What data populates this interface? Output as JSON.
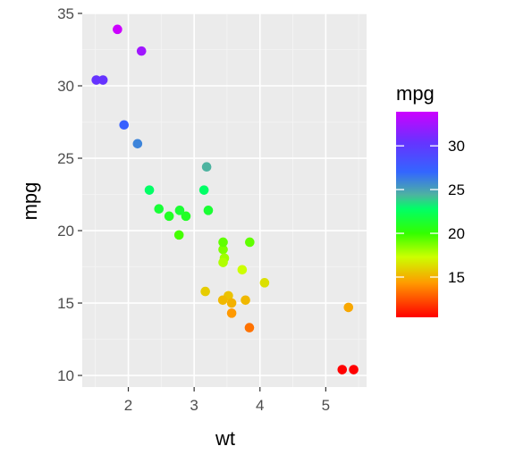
{
  "chart_data": {
    "type": "scatter",
    "xlabel": "wt",
    "ylabel": "mpg",
    "xlim": [
      1.3,
      5.62
    ],
    "ylim": [
      9.2,
      35.0
    ],
    "x_ticks": [
      2,
      3,
      4,
      5
    ],
    "x_tick_labels": [
      "2",
      "3",
      "4",
      "5"
    ],
    "y_ticks": [
      10,
      15,
      20,
      25,
      30,
      35
    ],
    "y_tick_labels": [
      "10",
      "15",
      "20",
      "25",
      "30",
      "35"
    ],
    "grid": true,
    "background": "#ebebeb",
    "points": [
      {
        "x": 2.62,
        "y": 21.0
      },
      {
        "x": 2.875,
        "y": 21.0
      },
      {
        "x": 2.32,
        "y": 22.8
      },
      {
        "x": 3.215,
        "y": 21.4
      },
      {
        "x": 3.44,
        "y": 18.7
      },
      {
        "x": 3.46,
        "y": 18.1
      },
      {
        "x": 3.57,
        "y": 14.3
      },
      {
        "x": 3.19,
        "y": 24.4
      },
      {
        "x": 3.15,
        "y": 22.8
      },
      {
        "x": 3.44,
        "y": 19.2
      },
      {
        "x": 3.44,
        "y": 17.8
      },
      {
        "x": 4.07,
        "y": 16.4
      },
      {
        "x": 3.73,
        "y": 17.3
      },
      {
        "x": 3.78,
        "y": 15.2
      },
      {
        "x": 5.25,
        "y": 10.4
      },
      {
        "x": 5.424,
        "y": 10.4
      },
      {
        "x": 5.345,
        "y": 14.7
      },
      {
        "x": 2.2,
        "y": 32.4
      },
      {
        "x": 1.615,
        "y": 30.4
      },
      {
        "x": 1.835,
        "y": 33.9
      },
      {
        "x": 2.465,
        "y": 21.5
      },
      {
        "x": 3.52,
        "y": 15.5
      },
      {
        "x": 3.435,
        "y": 15.2
      },
      {
        "x": 3.84,
        "y": 13.3
      },
      {
        "x": 3.845,
        "y": 19.2
      },
      {
        "x": 1.935,
        "y": 27.3
      },
      {
        "x": 2.14,
        "y": 26.0
      },
      {
        "x": 1.513,
        "y": 30.4
      },
      {
        "x": 3.17,
        "y": 15.8
      },
      {
        "x": 2.77,
        "y": 19.7
      },
      {
        "x": 3.57,
        "y": 15.0
      },
      {
        "x": 2.78,
        "y": 21.4
      }
    ],
    "legend": {
      "title": "mpg",
      "placement": "right",
      "range": [
        10.4,
        33.9
      ],
      "breaks": [
        15,
        20,
        25,
        30
      ],
      "break_labels": [
        "15",
        "20",
        "25",
        "30"
      ],
      "gradient": [
        {
          "value": 10.4,
          "color": "#ff0000"
        },
        {
          "value": 14.3,
          "color": "#ff9900"
        },
        {
          "value": 17.3,
          "color": "#ccff00"
        },
        {
          "value": 20.0,
          "color": "#33ff00"
        },
        {
          "value": 22.8,
          "color": "#00ff66"
        },
        {
          "value": 24.4,
          "color": "#4db3a0"
        },
        {
          "value": 27.0,
          "color": "#3366ff"
        },
        {
          "value": 30.4,
          "color": "#6633ff"
        },
        {
          "value": 33.9,
          "color": "#cc00ff"
        }
      ]
    }
  }
}
